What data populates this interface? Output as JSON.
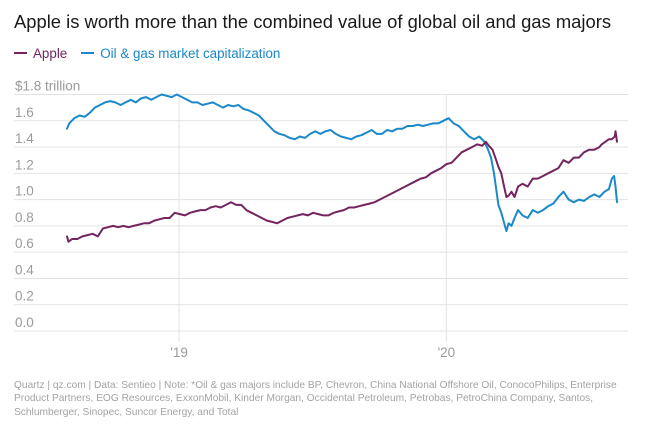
{
  "title": "Apple is worth more than the combined value of global oil and gas majors",
  "legend": [
    {
      "label": "Apple",
      "color": "#74245f"
    },
    {
      "label": "Oil & gas market capitalization",
      "color": "#1a88c9"
    }
  ],
  "footnote": "Quartz | qz.com | Data: Sentieo | Note: *Oil & gas majors include BP, Chevron, China National Offshore Oil, ConocoPhilips, Enterprise Product Partners, EOG Resources, ExxonMobil, Kinder Morgan, Occidental Petroleum, Petrobas, PetroChina Company, Santos, Schlumberger, Sinopec, Suncor Energy, and Total",
  "colors": {
    "apple": "#74245f",
    "oil_gas": "#1a88c9",
    "grid": "#e3e3e3",
    "tick_text": "#9a9a9a"
  },
  "chart_data": {
    "type": "line",
    "xlabel": "",
    "ylabel": "",
    "unit_label": "$1.8 trillion",
    "y_tick_labels": [
      "0.0",
      "0.2",
      "0.4",
      "0.6",
      "0.8",
      "1.0",
      "1.2",
      "1.4",
      "1.6",
      "$1.8 trillion"
    ],
    "y_ticks": [
      0,
      0.2,
      0.4,
      0.6,
      0.8,
      1.0,
      1.2,
      1.4,
      1.6,
      1.8
    ],
    "ylim": [
      0,
      1.8
    ],
    "xlim": [
      "2018-08-01",
      "2020-08-21"
    ],
    "x_tick_labels": [
      "'19",
      "'20"
    ],
    "x_ticks": [
      "2019-01-01",
      "2020-01-01"
    ],
    "grid": true,
    "legend_position": "top-left",
    "series": [
      {
        "name": "Apple",
        "color": "#74245f",
        "points": [
          [
            "2018-08-01",
            0.72
          ],
          [
            "2018-08-03",
            0.68
          ],
          [
            "2018-08-08",
            0.7
          ],
          [
            "2018-08-15",
            0.7
          ],
          [
            "2018-08-22",
            0.72
          ],
          [
            "2018-08-29",
            0.73
          ],
          [
            "2018-09-05",
            0.74
          ],
          [
            "2018-09-12",
            0.72
          ],
          [
            "2018-09-19",
            0.78
          ],
          [
            "2018-09-26",
            0.79
          ],
          [
            "2018-10-03",
            0.8
          ],
          [
            "2018-10-10",
            0.79
          ],
          [
            "2018-10-17",
            0.8
          ],
          [
            "2018-10-24",
            0.79
          ],
          [
            "2018-10-31",
            0.8
          ],
          [
            "2018-11-07",
            0.81
          ],
          [
            "2018-11-14",
            0.82
          ],
          [
            "2018-11-21",
            0.82
          ],
          [
            "2018-11-28",
            0.84
          ],
          [
            "2018-12-05",
            0.85
          ],
          [
            "2018-12-12",
            0.86
          ],
          [
            "2018-12-19",
            0.86
          ],
          [
            "2018-12-26",
            0.9
          ],
          [
            "2019-01-02",
            0.89
          ],
          [
            "2019-01-09",
            0.88
          ],
          [
            "2019-01-16",
            0.9
          ],
          [
            "2019-01-23",
            0.91
          ],
          [
            "2019-01-30",
            0.92
          ],
          [
            "2019-02-06",
            0.92
          ],
          [
            "2019-02-13",
            0.94
          ],
          [
            "2019-02-20",
            0.95
          ],
          [
            "2019-02-27",
            0.94
          ],
          [
            "2019-03-06",
            0.96
          ],
          [
            "2019-03-13",
            0.98
          ],
          [
            "2019-03-20",
            0.96
          ],
          [
            "2019-03-27",
            0.96
          ],
          [
            "2019-04-03",
            0.92
          ],
          [
            "2019-04-10",
            0.9
          ],
          [
            "2019-04-17",
            0.88
          ],
          [
            "2019-04-24",
            0.86
          ],
          [
            "2019-05-01",
            0.84
          ],
          [
            "2019-05-08",
            0.83
          ],
          [
            "2019-05-15",
            0.82
          ],
          [
            "2019-05-22",
            0.84
          ],
          [
            "2019-05-29",
            0.86
          ],
          [
            "2019-06-05",
            0.87
          ],
          [
            "2019-06-12",
            0.88
          ],
          [
            "2019-06-19",
            0.89
          ],
          [
            "2019-06-26",
            0.88
          ],
          [
            "2019-07-03",
            0.9
          ],
          [
            "2019-07-10",
            0.89
          ],
          [
            "2019-07-17",
            0.88
          ],
          [
            "2019-07-24",
            0.88
          ],
          [
            "2019-07-31",
            0.9
          ],
          [
            "2019-08-07",
            0.91
          ],
          [
            "2019-08-14",
            0.92
          ],
          [
            "2019-08-21",
            0.94
          ],
          [
            "2019-08-28",
            0.94
          ],
          [
            "2019-09-04",
            0.95
          ],
          [
            "2019-09-11",
            0.96
          ],
          [
            "2019-09-18",
            0.97
          ],
          [
            "2019-09-25",
            0.98
          ],
          [
            "2019-10-02",
            1.0
          ],
          [
            "2019-10-09",
            1.02
          ],
          [
            "2019-10-16",
            1.04
          ],
          [
            "2019-10-23",
            1.06
          ],
          [
            "2019-10-30",
            1.08
          ],
          [
            "2019-11-06",
            1.1
          ],
          [
            "2019-11-13",
            1.12
          ],
          [
            "2019-11-20",
            1.14
          ],
          [
            "2019-11-27",
            1.16
          ],
          [
            "2019-12-04",
            1.17
          ],
          [
            "2019-12-11",
            1.2
          ],
          [
            "2019-12-18",
            1.22
          ],
          [
            "2019-12-25",
            1.24
          ],
          [
            "2020-01-01",
            1.27
          ],
          [
            "2020-01-08",
            1.28
          ],
          [
            "2020-01-15",
            1.32
          ],
          [
            "2020-01-22",
            1.36
          ],
          [
            "2020-01-29",
            1.38
          ],
          [
            "2020-02-05",
            1.4
          ],
          [
            "2020-02-12",
            1.42
          ],
          [
            "2020-02-19",
            1.41
          ],
          [
            "2020-02-24",
            1.44
          ],
          [
            "2020-02-28",
            1.41
          ],
          [
            "2020-03-04",
            1.38
          ],
          [
            "2020-03-09",
            1.3
          ],
          [
            "2020-03-12",
            1.25
          ],
          [
            "2020-03-16",
            1.2
          ],
          [
            "2020-03-19",
            1.12
          ],
          [
            "2020-03-23",
            1.02
          ],
          [
            "2020-03-26",
            1.03
          ],
          [
            "2020-03-30",
            1.06
          ],
          [
            "2020-04-03",
            1.02
          ],
          [
            "2020-04-08",
            1.1
          ],
          [
            "2020-04-14",
            1.12
          ],
          [
            "2020-04-21",
            1.1
          ],
          [
            "2020-04-28",
            1.16
          ],
          [
            "2020-05-05",
            1.16
          ],
          [
            "2020-05-12",
            1.18
          ],
          [
            "2020-05-19",
            1.2
          ],
          [
            "2020-05-26",
            1.22
          ],
          [
            "2020-06-02",
            1.24
          ],
          [
            "2020-06-09",
            1.3
          ],
          [
            "2020-06-16",
            1.28
          ],
          [
            "2020-06-23",
            1.32
          ],
          [
            "2020-06-30",
            1.32
          ],
          [
            "2020-07-07",
            1.36
          ],
          [
            "2020-07-14",
            1.38
          ],
          [
            "2020-07-21",
            1.38
          ],
          [
            "2020-07-28",
            1.4
          ],
          [
            "2020-07-31",
            1.42
          ],
          [
            "2020-08-05",
            1.44
          ],
          [
            "2020-08-10",
            1.46
          ],
          [
            "2020-08-14",
            1.46
          ],
          [
            "2020-08-18",
            1.48
          ],
          [
            "2020-08-19",
            1.52
          ],
          [
            "2020-08-20",
            1.48
          ],
          [
            "2020-08-21",
            1.44
          ]
        ]
      },
      {
        "name": "Oil & gas market capitalization",
        "color": "#1a88c9",
        "points": [
          [
            "2018-08-01",
            1.54
          ],
          [
            "2018-08-04",
            1.58
          ],
          [
            "2018-08-11",
            1.62
          ],
          [
            "2018-08-18",
            1.64
          ],
          [
            "2018-08-25",
            1.63
          ],
          [
            "2018-09-01",
            1.66
          ],
          [
            "2018-09-08",
            1.7
          ],
          [
            "2018-09-15",
            1.72
          ],
          [
            "2018-09-22",
            1.74
          ],
          [
            "2018-09-29",
            1.75
          ],
          [
            "2018-10-06",
            1.74
          ],
          [
            "2018-10-13",
            1.72
          ],
          [
            "2018-10-20",
            1.74
          ],
          [
            "2018-10-27",
            1.76
          ],
          [
            "2018-11-03",
            1.74
          ],
          [
            "2018-11-10",
            1.77
          ],
          [
            "2018-11-17",
            1.78
          ],
          [
            "2018-11-24",
            1.76
          ],
          [
            "2018-12-01",
            1.78
          ],
          [
            "2018-12-08",
            1.8
          ],
          [
            "2018-12-15",
            1.79
          ],
          [
            "2018-12-22",
            1.78
          ],
          [
            "2018-12-29",
            1.8
          ],
          [
            "2019-01-05",
            1.78
          ],
          [
            "2019-01-12",
            1.76
          ],
          [
            "2019-01-19",
            1.74
          ],
          [
            "2019-01-26",
            1.74
          ],
          [
            "2019-02-02",
            1.72
          ],
          [
            "2019-02-09",
            1.73
          ],
          [
            "2019-02-16",
            1.74
          ],
          [
            "2019-02-23",
            1.72
          ],
          [
            "2019-03-02",
            1.7
          ],
          [
            "2019-03-09",
            1.72
          ],
          [
            "2019-03-16",
            1.71
          ],
          [
            "2019-03-23",
            1.72
          ],
          [
            "2019-03-30",
            1.69
          ],
          [
            "2019-04-06",
            1.68
          ],
          [
            "2019-04-13",
            1.66
          ],
          [
            "2019-04-20",
            1.64
          ],
          [
            "2019-04-27",
            1.6
          ],
          [
            "2019-05-04",
            1.56
          ],
          [
            "2019-05-11",
            1.52
          ],
          [
            "2019-05-18",
            1.5
          ],
          [
            "2019-05-25",
            1.49
          ],
          [
            "2019-06-01",
            1.47
          ],
          [
            "2019-06-08",
            1.46
          ],
          [
            "2019-06-15",
            1.48
          ],
          [
            "2019-06-22",
            1.47
          ],
          [
            "2019-06-29",
            1.5
          ],
          [
            "2019-07-06",
            1.52
          ],
          [
            "2019-07-13",
            1.5
          ],
          [
            "2019-07-20",
            1.52
          ],
          [
            "2019-07-27",
            1.53
          ],
          [
            "2019-08-03",
            1.5
          ],
          [
            "2019-08-10",
            1.48
          ],
          [
            "2019-08-17",
            1.47
          ],
          [
            "2019-08-24",
            1.46
          ],
          [
            "2019-08-31",
            1.48
          ],
          [
            "2019-09-07",
            1.49
          ],
          [
            "2019-09-14",
            1.51
          ],
          [
            "2019-09-21",
            1.53
          ],
          [
            "2019-09-28",
            1.5
          ],
          [
            "2019-10-05",
            1.5
          ],
          [
            "2019-10-12",
            1.53
          ],
          [
            "2019-10-19",
            1.52
          ],
          [
            "2019-10-26",
            1.54
          ],
          [
            "2019-11-02",
            1.54
          ],
          [
            "2019-11-09",
            1.56
          ],
          [
            "2019-11-16",
            1.56
          ],
          [
            "2019-11-23",
            1.57
          ],
          [
            "2019-11-30",
            1.56
          ],
          [
            "2019-12-07",
            1.57
          ],
          [
            "2019-12-14",
            1.58
          ],
          [
            "2019-12-21",
            1.58
          ],
          [
            "2019-12-28",
            1.6
          ],
          [
            "2020-01-04",
            1.62
          ],
          [
            "2020-01-11",
            1.58
          ],
          [
            "2020-01-18",
            1.56
          ],
          [
            "2020-01-25",
            1.52
          ],
          [
            "2020-02-01",
            1.48
          ],
          [
            "2020-02-08",
            1.46
          ],
          [
            "2020-02-15",
            1.48
          ],
          [
            "2020-02-22",
            1.44
          ],
          [
            "2020-02-27",
            1.38
          ],
          [
            "2020-03-02",
            1.32
          ],
          [
            "2020-03-06",
            1.2
          ],
          [
            "2020-03-09",
            1.08
          ],
          [
            "2020-03-12",
            0.96
          ],
          [
            "2020-03-16",
            0.9
          ],
          [
            "2020-03-19",
            0.84
          ],
          [
            "2020-03-23",
            0.76
          ],
          [
            "2020-03-26",
            0.82
          ],
          [
            "2020-03-30",
            0.8
          ],
          [
            "2020-04-03",
            0.86
          ],
          [
            "2020-04-08",
            0.92
          ],
          [
            "2020-04-14",
            0.88
          ],
          [
            "2020-04-21",
            0.86
          ],
          [
            "2020-04-28",
            0.92
          ],
          [
            "2020-05-05",
            0.9
          ],
          [
            "2020-05-12",
            0.92
          ],
          [
            "2020-05-19",
            0.95
          ],
          [
            "2020-05-26",
            0.97
          ],
          [
            "2020-06-02",
            1.02
          ],
          [
            "2020-06-09",
            1.06
          ],
          [
            "2020-06-16",
            1.0
          ],
          [
            "2020-06-23",
            0.98
          ],
          [
            "2020-06-30",
            1.0
          ],
          [
            "2020-07-07",
            0.99
          ],
          [
            "2020-07-14",
            1.02
          ],
          [
            "2020-07-21",
            1.04
          ],
          [
            "2020-07-28",
            1.02
          ],
          [
            "2020-08-04",
            1.06
          ],
          [
            "2020-08-10",
            1.08
          ],
          [
            "2020-08-14",
            1.16
          ],
          [
            "2020-08-17",
            1.18
          ],
          [
            "2020-08-19",
            1.1
          ],
          [
            "2020-08-21",
            0.98
          ]
        ]
      }
    ]
  }
}
